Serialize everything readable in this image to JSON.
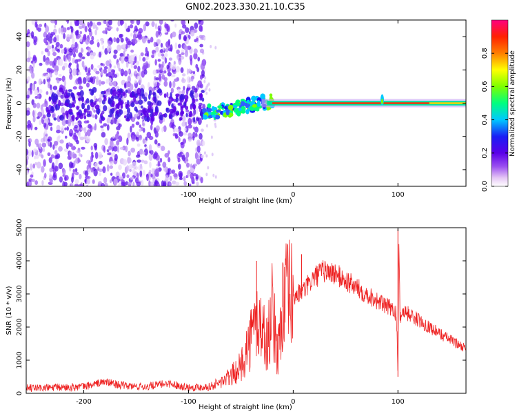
{
  "title": "GN02.2023.330.21.10.C35",
  "chart_data": [
    {
      "type": "heatmap",
      "xlabel": "Height of straight line (km)",
      "ylabel": "Frequency (Hz)",
      "xlim": [
        -255,
        165
      ],
      "ylim": [
        -50,
        50
      ],
      "xticks": [
        -200,
        -100,
        0,
        100
      ],
      "yticks": [
        -40,
        -20,
        0,
        20,
        40
      ],
      "colorbar": {
        "label": "Normalized spectral amplitude",
        "range": [
          0,
          1
        ],
        "ticks": [
          "0.0",
          "0.2",
          "0.4",
          "0.6",
          "0.8"
        ],
        "colormap": [
          "#ffffff",
          "#e6c8f5",
          "#9a4ef0",
          "#5a00e8",
          "#1a1ef5",
          "#00c8ff",
          "#00ff7f",
          "#7dff00",
          "#ffff00",
          "#ff7f00",
          "#ff2200",
          "#ff0080"
        ]
      },
      "features": [
        {
          "name": "broadband noise",
          "x_range": [
            -255,
            -85
          ],
          "freq_range": [
            -50,
            50
          ],
          "amplitude": 0.1
        },
        {
          "name": "chirp onset",
          "x_range": [
            -85,
            -10
          ],
          "freq_range": [
            -5,
            5
          ],
          "amplitude": 0.5
        },
        {
          "name": "0 Hz line",
          "x_range": [
            -25,
            165
          ],
          "freq_hz": 0,
          "amplitude": 0.85
        },
        {
          "name": "spike",
          "x": 85,
          "freq_range": [
            -4,
            8
          ],
          "amplitude": 0.4
        }
      ]
    },
    {
      "type": "line",
      "xlabel": "Height of straight line (km)",
      "ylabel": "SNR (10 * v/v)",
      "xlim": [
        -255,
        165
      ],
      "ylim": [
        0,
        5000
      ],
      "xticks": [
        -200,
        -100,
        0,
        100
      ],
      "yticks": [
        0,
        1000,
        2000,
        3000,
        4000,
        5000
      ],
      "color": "#ee2222",
      "x": [
        -255,
        -230,
        -200,
        -180,
        -170,
        -160,
        -140,
        -120,
        -100,
        -80,
        -70,
        -60,
        -50,
        -45,
        -40,
        -35,
        -30,
        -25,
        -20,
        -15,
        -10,
        -5,
        0,
        10,
        20,
        30,
        40,
        50,
        60,
        70,
        80,
        90,
        95,
        98,
        99,
        100,
        101,
        102,
        105,
        120,
        140,
        165
      ],
      "y": [
        150,
        170,
        200,
        350,
        280,
        220,
        200,
        300,
        180,
        200,
        320,
        500,
        800,
        1300,
        1700,
        2200,
        2000,
        1500,
        2500,
        1200,
        2600,
        3000,
        2900,
        3100,
        3500,
        3700,
        3600,
        3400,
        3200,
        3000,
        2800,
        2600,
        2600,
        2400,
        2000,
        500,
        4950,
        2300,
        2500,
        2200,
        1800,
        1350
      ],
      "spikes": [
        {
          "x": -35,
          "y": 4000
        },
        {
          "x": -10,
          "y": 3950
        },
        {
          "x": 8,
          "y": 4200
        },
        {
          "x": 100,
          "y": 4950
        }
      ]
    }
  ]
}
